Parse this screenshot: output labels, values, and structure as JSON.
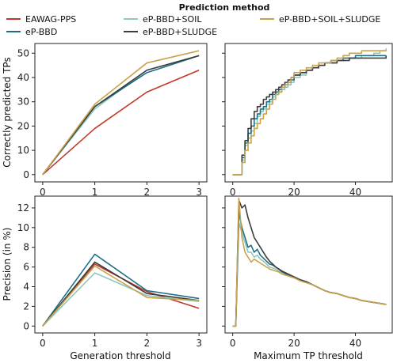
{
  "legend": {
    "title": "Prediction method",
    "entries": [
      {
        "name": "EAWAG-PPS",
        "color": "#c0392b"
      },
      {
        "name": "eP-BBD+SOIL",
        "color": "#8fc8bd"
      },
      {
        "name": "eP-BBD+SOIL+SLUDGE",
        "color": "#c8a24e"
      },
      {
        "name": "eP-BBD",
        "color": "#1f6f86"
      },
      {
        "name": "eP-BBD+SLUDGE",
        "color": "#3c3c3c"
      }
    ]
  },
  "chart_data": [
    {
      "type": "line",
      "panel": "top-left",
      "xlabel": "",
      "ylabel": "Correctly predicted TPs",
      "xlim": [
        -0.15,
        3.15
      ],
      "ylim": [
        -3,
        54
      ],
      "xticks": [
        0,
        1,
        2,
        3
      ],
      "yticks": [
        0,
        10,
        20,
        30,
        40,
        50
      ],
      "x": [
        0,
        1,
        2,
        3
      ],
      "series": [
        {
          "name": "EAWAG-PPS",
          "color": "#c0392b",
          "values": [
            0,
            19,
            34,
            43
          ]
        },
        {
          "name": "eP-BBD+SOIL",
          "color": "#8fc8bd",
          "values": [
            0,
            27,
            43,
            49
          ]
        },
        {
          "name": "eP-BBD",
          "color": "#1f6f86",
          "values": [
            0,
            28,
            42,
            49
          ]
        },
        {
          "name": "eP-BBD+SLUDGE",
          "color": "#3c3c3c",
          "values": [
            0,
            28,
            43,
            49
          ]
        },
        {
          "name": "eP-BBD+SOIL+SLUDGE",
          "color": "#c8a24e",
          "values": [
            0,
            29,
            46,
            51
          ]
        }
      ]
    },
    {
      "type": "line",
      "panel": "top-right",
      "xlabel": "",
      "ylabel": "",
      "xlim": [
        -2.5,
        52
      ],
      "ylim": [
        -3,
        54
      ],
      "xticks": [
        0,
        20,
        40
      ],
      "yticks": [
        0,
        10,
        20,
        30,
        40,
        50
      ],
      "x": [
        0,
        1,
        2,
        3,
        4,
        5,
        6,
        7,
        8,
        9,
        10,
        11,
        12,
        13,
        14,
        15,
        16,
        17,
        18,
        19,
        20,
        22,
        24,
        26,
        28,
        30,
        32,
        34,
        36,
        38,
        40,
        42,
        44,
        46,
        48,
        50
      ],
      "series": [
        {
          "name": "eP-BBD+SOIL",
          "color": "#8fc8bd",
          "values": [
            0,
            0,
            0,
            6,
            12,
            15,
            18,
            21,
            24,
            26,
            27,
            29,
            30,
            32,
            33,
            34,
            35,
            36,
            37,
            38,
            40,
            41,
            43,
            44,
            45,
            46,
            46,
            47,
            47,
            48,
            48,
            49,
            49,
            50,
            51,
            52
          ]
        },
        {
          "name": "eP-BBD",
          "color": "#1f6f86",
          "values": [
            0,
            0,
            0,
            7,
            13,
            17,
            20,
            23,
            25,
            27,
            28,
            30,
            31,
            33,
            34,
            35,
            36,
            37,
            38,
            39,
            41,
            42,
            43,
            44,
            45,
            46,
            47,
            47,
            48,
            48,
            49,
            49,
            49,
            49,
            49,
            49
          ]
        },
        {
          "name": "eP-BBD+SLUDGE",
          "color": "#3c3c3c",
          "values": [
            0,
            0,
            0,
            8,
            14,
            19,
            23,
            26,
            28,
            29,
            31,
            32,
            33,
            34,
            35,
            36,
            37,
            38,
            39,
            40,
            41,
            42,
            43,
            44,
            45,
            46,
            46,
            47,
            47,
            48,
            48,
            48,
            48,
            48,
            48,
            49
          ]
        },
        {
          "name": "eP-BBD+SOIL+SLUDGE",
          "color": "#c8a24e",
          "values": [
            0,
            0,
            0,
            5,
            10,
            13,
            16,
            19,
            21,
            23,
            25,
            27,
            29,
            31,
            33,
            34,
            36,
            37,
            38,
            40,
            42,
            43,
            44,
            45,
            46,
            46,
            47,
            48,
            49,
            50,
            50,
            51,
            51,
            51,
            51,
            51
          ]
        }
      ]
    },
    {
      "type": "line",
      "panel": "bottom-left",
      "xlabel": "Generation threshold",
      "ylabel": "Precision (in %)",
      "xlim": [
        -0.15,
        3.15
      ],
      "ylim": [
        -0.7,
        13.2
      ],
      "xticks": [
        0,
        1,
        2,
        3
      ],
      "yticks": [
        0,
        2,
        4,
        6,
        8,
        10,
        12
      ],
      "x": [
        0,
        1,
        2,
        3
      ],
      "series": [
        {
          "name": "EAWAG-PPS",
          "color": "#c0392b",
          "values": [
            0,
            6.3,
            3.5,
            1.8
          ]
        },
        {
          "name": "eP-BBD+SOIL",
          "color": "#8fc8bd",
          "values": [
            0,
            5.4,
            3.1,
            2.5
          ]
        },
        {
          "name": "eP-BBD",
          "color": "#1f6f86",
          "values": [
            0,
            7.3,
            3.6,
            2.8
          ]
        },
        {
          "name": "eP-BBD+SLUDGE",
          "color": "#3c3c3c",
          "values": [
            0,
            6.5,
            3.3,
            2.6
          ]
        },
        {
          "name": "eP-BBD+SOIL+SLUDGE",
          "color": "#c8a24e",
          "values": [
            0,
            6.1,
            2.9,
            2.6
          ]
        }
      ]
    },
    {
      "type": "line",
      "panel": "bottom-right",
      "xlabel": "Maximum TP threshold",
      "ylabel": "",
      "xlim": [
        -2.5,
        52
      ],
      "ylim": [
        -0.7,
        13.2
      ],
      "xticks": [
        0,
        20,
        40
      ],
      "yticks": [
        0,
        2,
        4,
        6,
        8,
        10,
        12
      ],
      "x": [
        0,
        1,
        2,
        3,
        4,
        5,
        6,
        7,
        8,
        9,
        10,
        11,
        12,
        13,
        14,
        15,
        16,
        18,
        20,
        22,
        24,
        26,
        28,
        30,
        32,
        34,
        36,
        38,
        40,
        42,
        44,
        46,
        48,
        50
      ],
      "series": [
        {
          "name": "eP-BBD+SOIL",
          "color": "#8fc8bd",
          "values": [
            0,
            0,
            10.5,
            9.5,
            8.5,
            7.5,
            7.5,
            7.0,
            7.2,
            6.8,
            6.6,
            6.3,
            6.0,
            5.9,
            5.8,
            5.6,
            5.3,
            5.1,
            4.9,
            4.6,
            4.4,
            4.2,
            3.9,
            3.6,
            3.4,
            3.3,
            3.1,
            2.9,
            2.8,
            2.6,
            2.5,
            2.4,
            2.3,
            2.2
          ]
        },
        {
          "name": "eP-BBD",
          "color": "#1f6f86",
          "values": [
            0,
            0,
            11.5,
            10.0,
            9.0,
            8.0,
            8.2,
            7.5,
            7.8,
            7.2,
            6.9,
            6.6,
            6.3,
            6.2,
            6.0,
            5.8,
            5.5,
            5.2,
            5.0,
            4.7,
            4.5,
            4.2,
            3.9,
            3.6,
            3.4,
            3.3,
            3.1,
            2.9,
            2.8,
            2.6,
            2.5,
            2.4,
            2.3,
            2.2
          ]
        },
        {
          "name": "eP-BBD+SLUDGE",
          "color": "#3c3c3c",
          "values": [
            0,
            0,
            12.8,
            12.0,
            12.3,
            11.0,
            10.0,
            9.0,
            8.5,
            8.0,
            7.5,
            7.0,
            6.6,
            6.3,
            6.0,
            5.8,
            5.6,
            5.3,
            5.0,
            4.7,
            4.5,
            4.2,
            3.9,
            3.6,
            3.4,
            3.3,
            3.1,
            2.9,
            2.8,
            2.6,
            2.5,
            2.4,
            2.3,
            2.2
          ]
        },
        {
          "name": "eP-BBD+SOIL+SLUDGE",
          "color": "#c8a24e",
          "values": [
            0,
            0,
            13.0,
            9.0,
            7.5,
            7.0,
            6.5,
            6.8,
            6.6,
            6.4,
            6.2,
            6.0,
            5.8,
            5.7,
            5.6,
            5.5,
            5.3,
            5.1,
            4.9,
            4.6,
            4.4,
            4.2,
            3.9,
            3.6,
            3.4,
            3.3,
            3.1,
            2.9,
            2.8,
            2.6,
            2.5,
            2.4,
            2.3,
            2.2
          ]
        }
      ]
    }
  ]
}
